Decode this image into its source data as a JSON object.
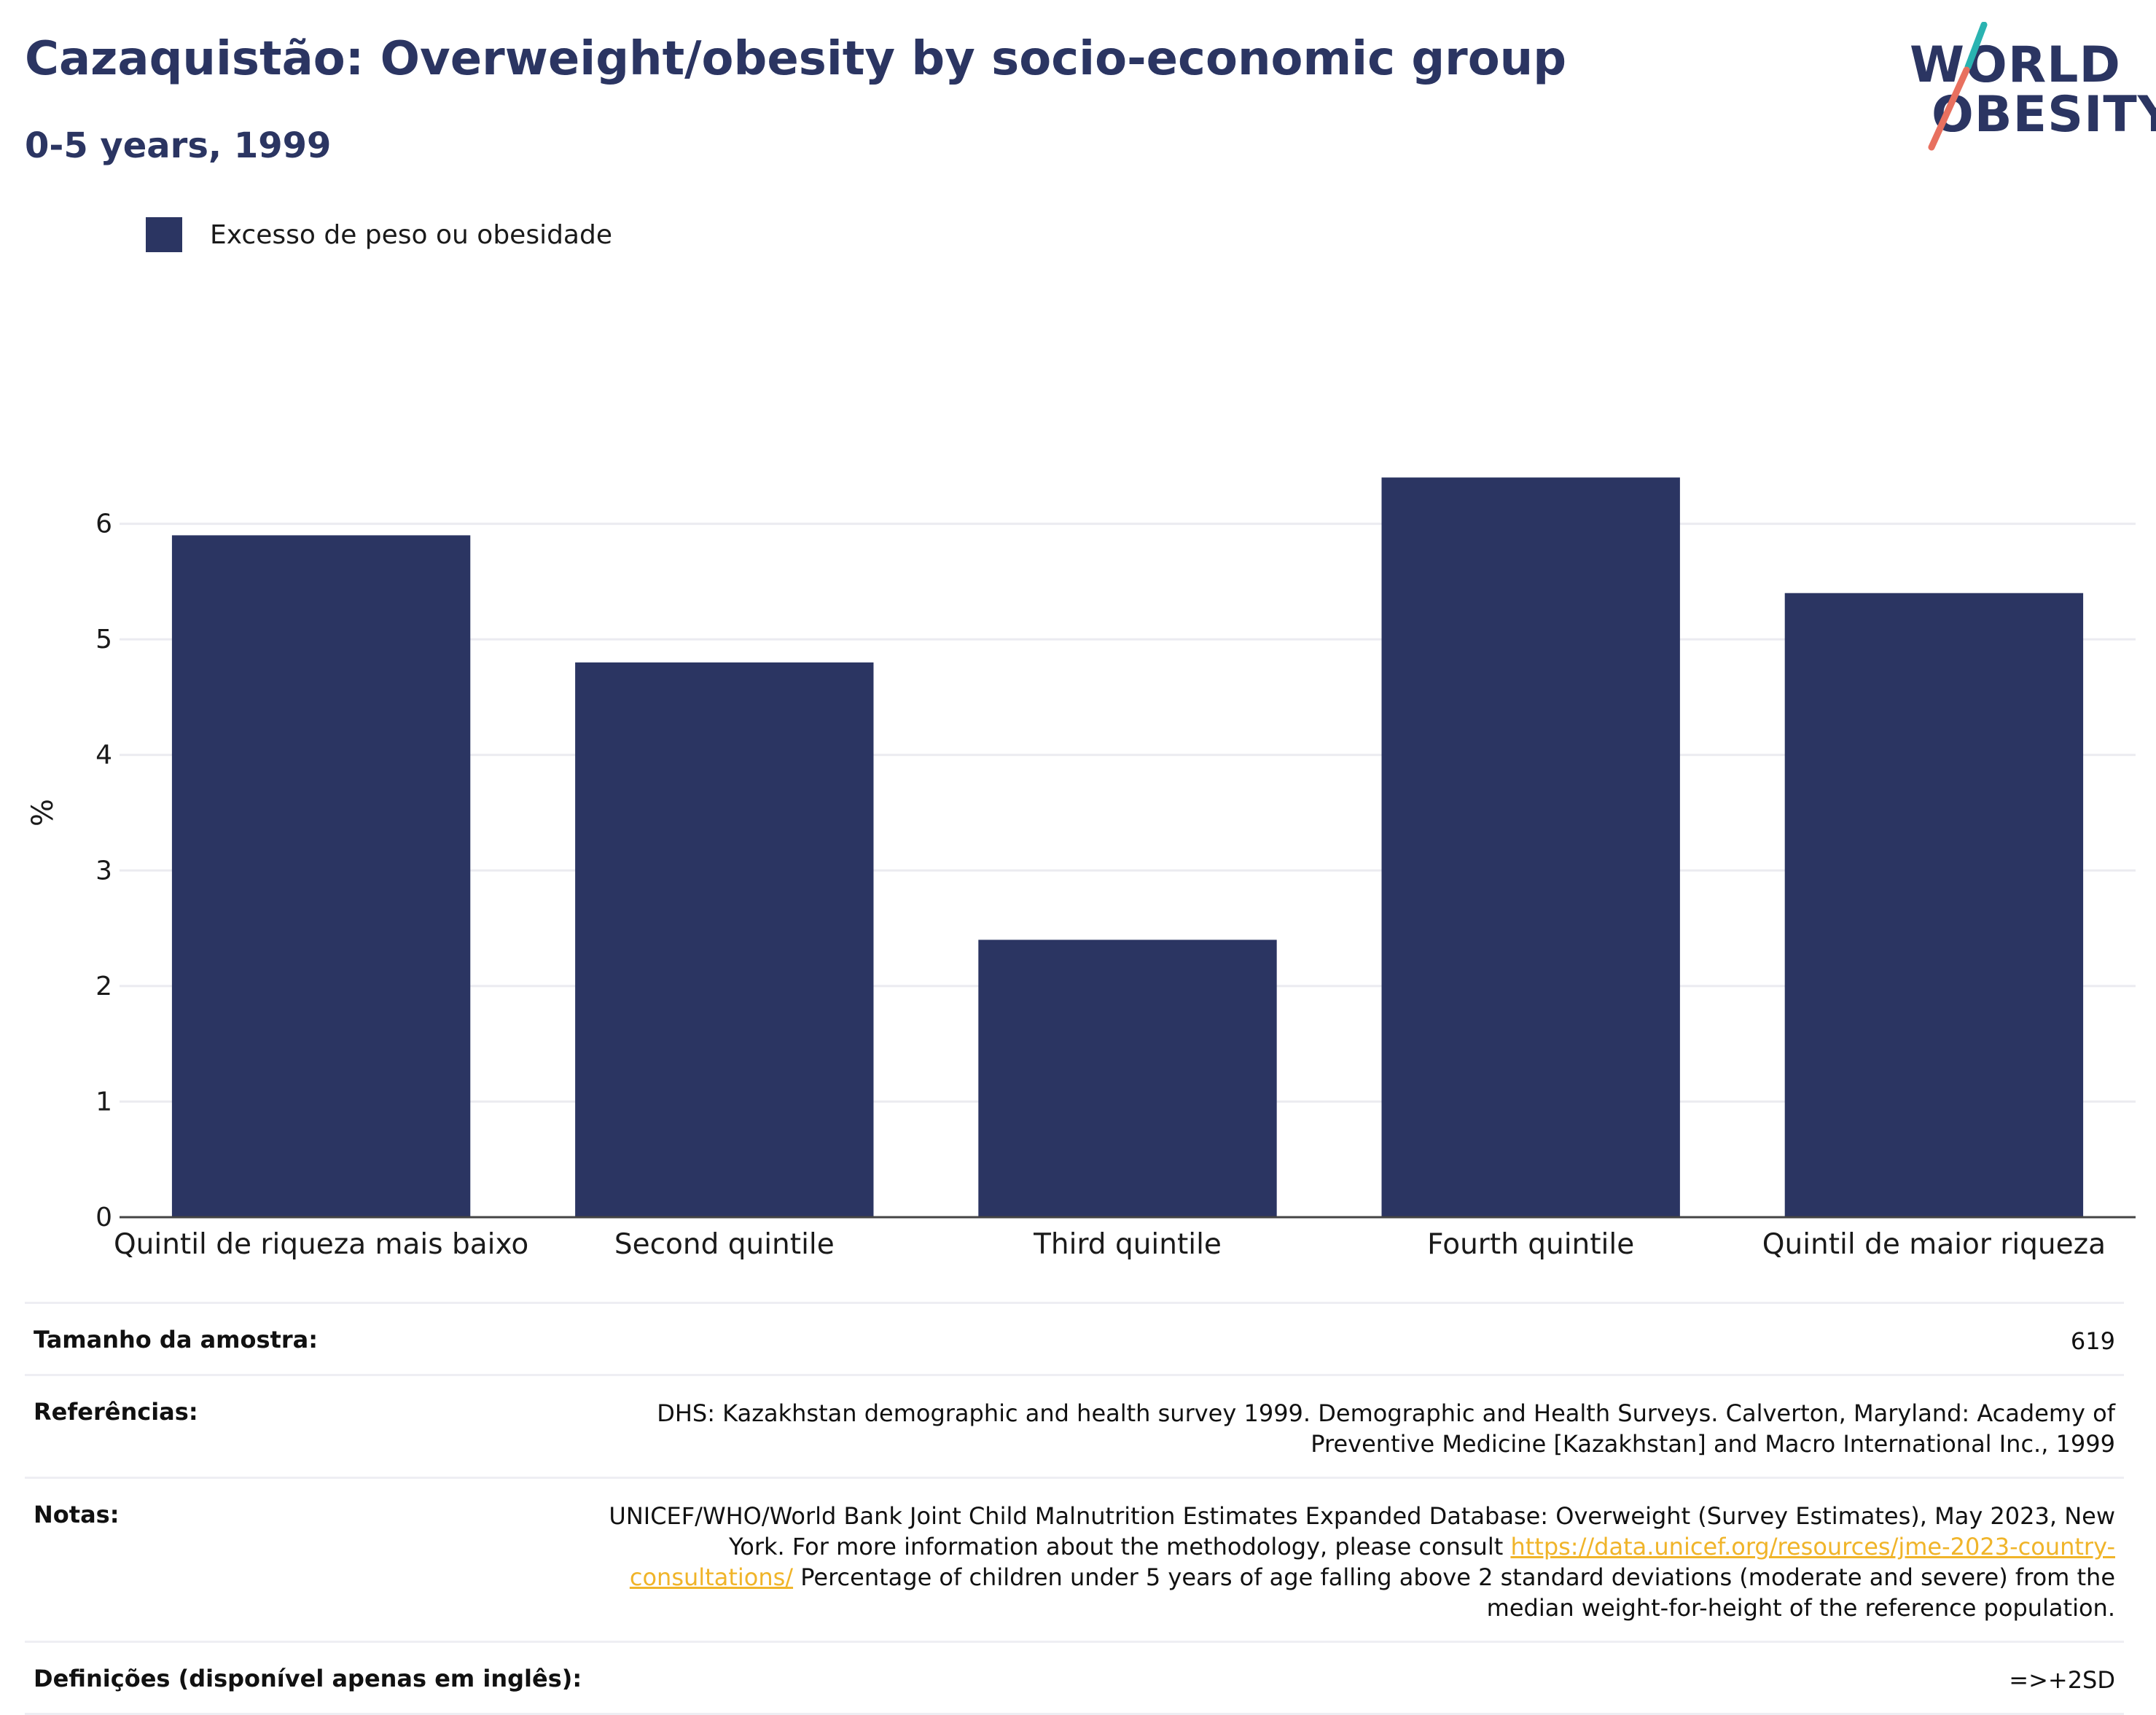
{
  "header": {
    "title": "Cazaquistão: Overweight/obesity by socio-economic group",
    "subtitle": "0-5 years, 1999"
  },
  "logo": {
    "line1": "WORLD",
    "line2": "OBESITY",
    "colors": {
      "text": "#2b3562",
      "accent_teal": "#2ab3b1",
      "accent_red": "#e8705f"
    }
  },
  "chart_data": {
    "type": "bar",
    "categories": [
      "Quintil de riqueza mais baixo",
      "Second quintile",
      "Third quintile",
      "Fourth quintile",
      "Quintil de maior riqueza"
    ],
    "series": [
      {
        "name": "Excesso de peso ou obesidade",
        "values": [
          5.9,
          4.8,
          2.4,
          6.4,
          5.4
        ],
        "color": "#2b3562"
      }
    ],
    "title": "Cazaquistão: Overweight/obesity by socio-economic group",
    "subtitle": "0-5 years, 1999",
    "xlabel": "",
    "ylabel": "%",
    "ylim": [
      0,
      7
    ],
    "yticks": [
      0,
      1,
      2,
      3,
      4,
      5,
      6
    ],
    "grid": true,
    "legend_position": "top-left"
  },
  "info": {
    "rows": [
      {
        "key": "Tamanho da amostra:",
        "value": "619"
      },
      {
        "key": "Referências:",
        "value": "DHS: Kazakhstan demographic and health survey 1999. Demographic and Health Surveys. Calverton, Maryland: Academy of Preventive Medicine [Kazakhstan] and Macro International Inc., 1999"
      },
      {
        "key": "Notas:",
        "value_before": "UNICEF/WHO/World Bank Joint Child Malnutrition Estimates Expanded Database: Overweight (Survey Estimates), May 2023, New York. For more information about the methodology, please consult ",
        "link": "https://data.unicef.org/resources/jme-2023-country-consultations/",
        "value_after": " Percentage of children under 5 years of age falling above 2 standard deviations (moderate and severe) from the median weight-for-height of the reference population."
      },
      {
        "key": "Definições (disponível apenas em inglês):",
        "value": "=>+2SD"
      }
    ]
  }
}
